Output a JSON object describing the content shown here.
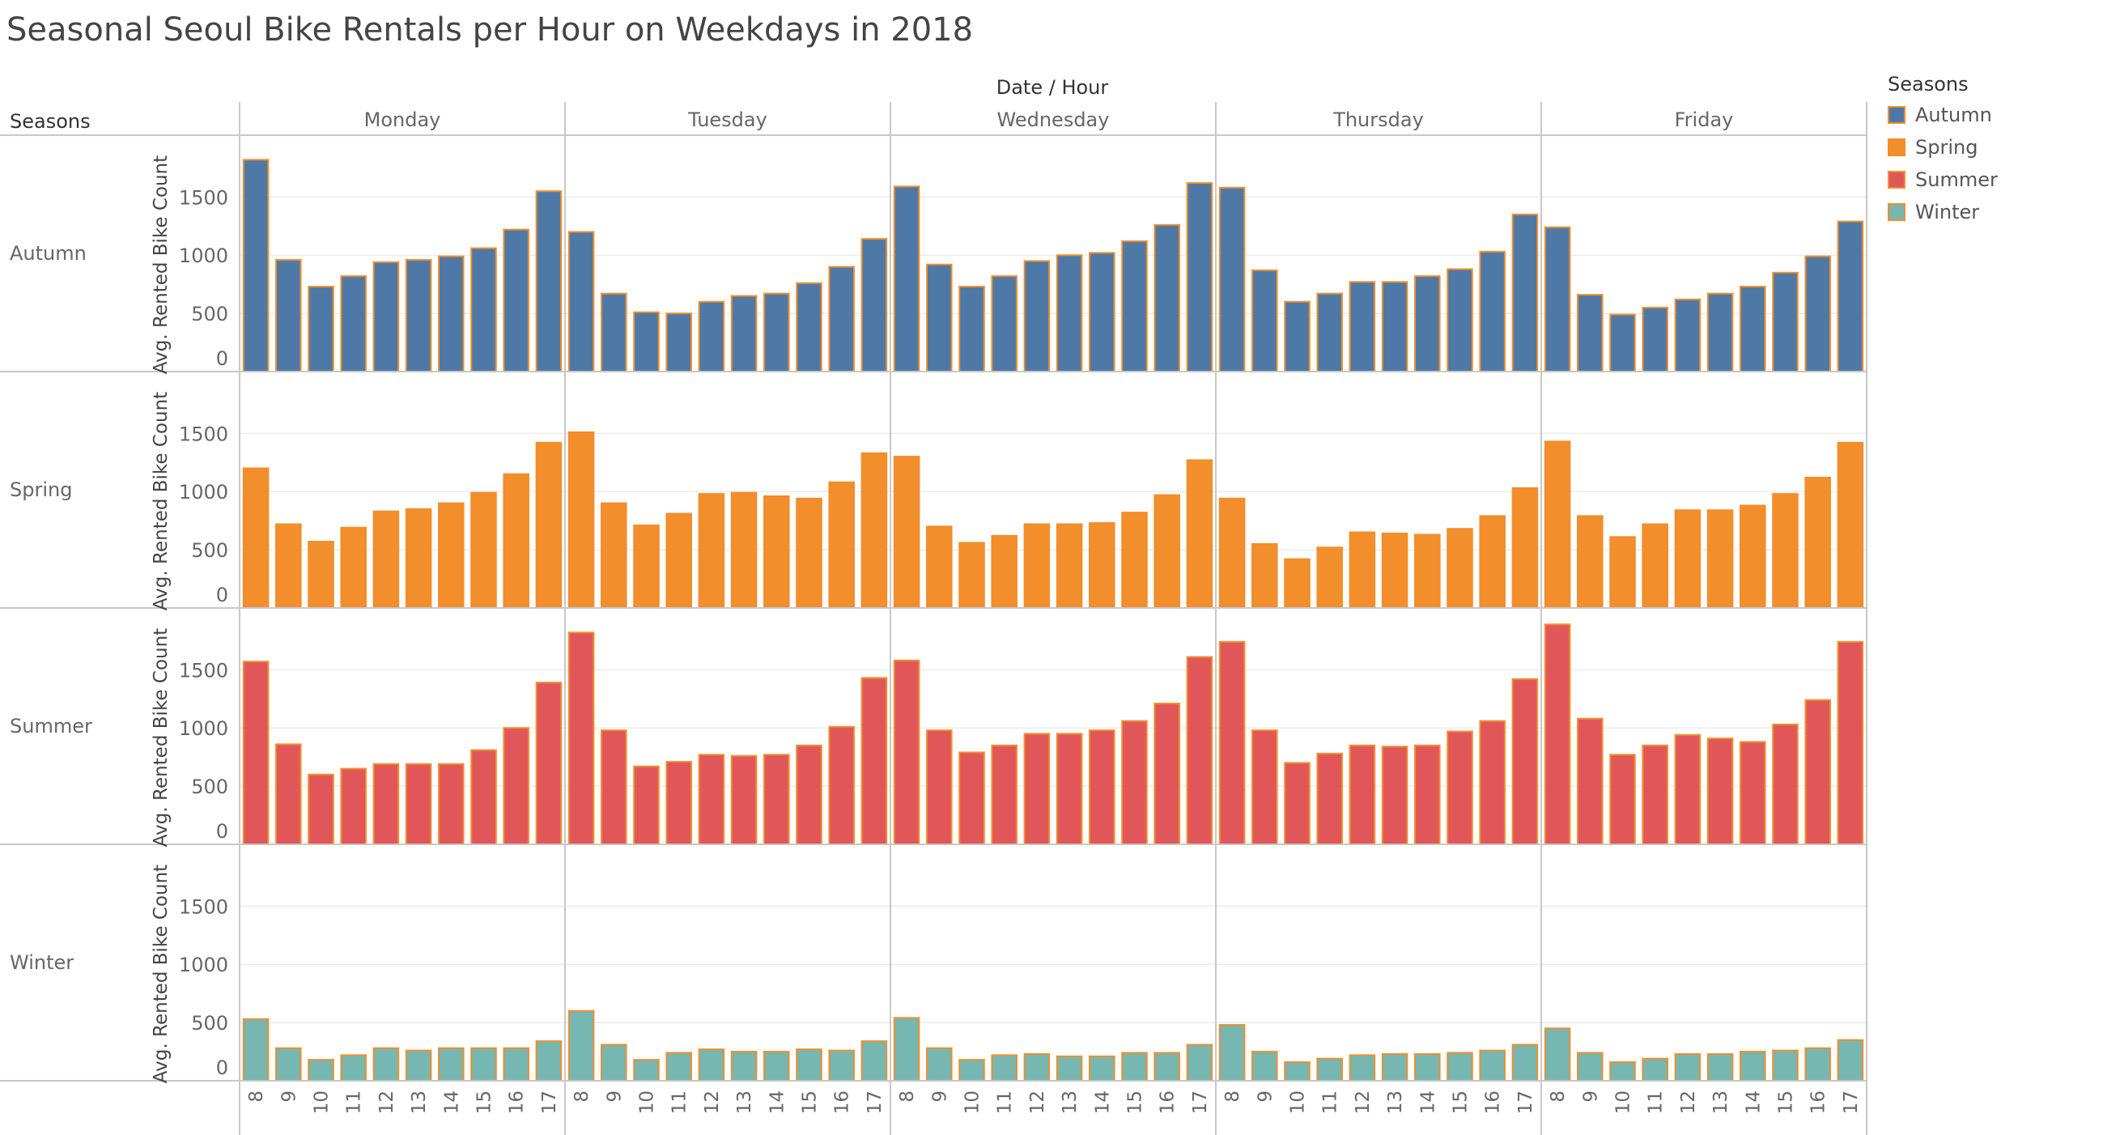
{
  "title": "Seasonal Seoul Bike Rentals per Hour on Weekdays in 2018",
  "column_header": "Date / Hour",
  "row_header": "Seasons",
  "legend": {
    "title": "Seasons",
    "items": [
      {
        "label": "Autumn",
        "color": "#4e79a7"
      },
      {
        "label": "Spring",
        "color": "#f28e2b"
      },
      {
        "label": "Summer",
        "color": "#e15759"
      },
      {
        "label": "Winter",
        "color": "#76b7b2"
      }
    ]
  },
  "colors": {
    "bar_border": "#f28e2b",
    "grid": "#ececec",
    "divider": "#c8c8c8"
  },
  "chart_data": {
    "type": "bar",
    "ylabel": "Avg. Rented Bike Count",
    "ylim": [
      0,
      1850
    ],
    "yticks": [
      0,
      500,
      1000,
      1500
    ],
    "days": [
      "Monday",
      "Tuesday",
      "Wednesday",
      "Thursday",
      "Friday"
    ],
    "hours": [
      "8",
      "9",
      "10",
      "11",
      "12",
      "13",
      "14",
      "15",
      "16",
      "17"
    ],
    "series": [
      {
        "name": "Autumn",
        "values": [
          [
            1820,
            960,
            730,
            820,
            940,
            960,
            990,
            1060,
            1220,
            1550
          ],
          [
            1200,
            670,
            510,
            500,
            600,
            650,
            670,
            760,
            900,
            1140
          ],
          [
            1590,
            920,
            730,
            820,
            950,
            1000,
            1020,
            1120,
            1260,
            1620
          ],
          [
            1580,
            870,
            600,
            670,
            770,
            770,
            820,
            880,
            1030,
            1350
          ],
          [
            1240,
            660,
            490,
            550,
            620,
            670,
            730,
            850,
            990,
            1290
          ]
        ]
      },
      {
        "name": "Spring",
        "values": [
          [
            1200,
            720,
            570,
            690,
            830,
            850,
            900,
            990,
            1150,
            1420
          ],
          [
            1510,
            900,
            710,
            810,
            980,
            990,
            960,
            940,
            1080,
            1330
          ],
          [
            1300,
            700,
            560,
            620,
            720,
            720,
            730,
            820,
            970,
            1270
          ],
          [
            940,
            550,
            420,
            520,
            650,
            640,
            630,
            680,
            790,
            1030
          ],
          [
            1430,
            790,
            610,
            720,
            840,
            840,
            880,
            980,
            1120,
            1420
          ]
        ]
      },
      {
        "name": "Summer",
        "values": [
          [
            1570,
            860,
            600,
            650,
            690,
            690,
            690,
            810,
            1000,
            1390
          ],
          [
            1820,
            980,
            670,
            710,
            770,
            760,
            770,
            850,
            1010,
            1430
          ],
          [
            1580,
            980,
            790,
            850,
            950,
            950,
            980,
            1060,
            1210,
            1610
          ],
          [
            1740,
            980,
            700,
            780,
            850,
            840,
            850,
            970,
            1060,
            1420
          ],
          [
            1890,
            1080,
            770,
            850,
            940,
            910,
            880,
            1030,
            1240,
            1740
          ]
        ]
      },
      {
        "name": "Winter",
        "values": [
          [
            530,
            280,
            180,
            220,
            280,
            260,
            280,
            280,
            280,
            340
          ],
          [
            600,
            310,
            180,
            240,
            270,
            250,
            250,
            270,
            260,
            340
          ],
          [
            540,
            280,
            180,
            220,
            230,
            210,
            210,
            240,
            240,
            310
          ],
          [
            480,
            250,
            160,
            190,
            220,
            230,
            230,
            240,
            260,
            310
          ],
          [
            450,
            240,
            160,
            190,
            230,
            230,
            250,
            260,
            280,
            350
          ]
        ]
      }
    ]
  }
}
